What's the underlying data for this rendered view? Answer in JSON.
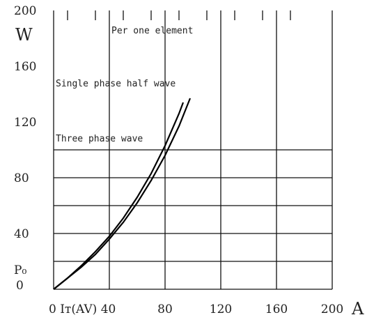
{
  "chart_data": {
    "type": "line",
    "title": "",
    "xlabel": "",
    "ylabel": "",
    "x_unit": "A",
    "y_unit": "W",
    "y_zero_label": "P₀",
    "x_first_label": "0 Iт(AV) 40",
    "xlim": [
      0,
      200
    ],
    "ylim": [
      0,
      200
    ],
    "x_ticks": [
      {
        "value": 0,
        "label": "0 Iт(AV)"
      },
      {
        "value": 40,
        "label": "40"
      },
      {
        "value": 80,
        "label": "80"
      },
      {
        "value": 120,
        "label": "120"
      },
      {
        "value": 160,
        "label": "160"
      },
      {
        "value": 200,
        "label": "200"
      }
    ],
    "y_ticks": [
      {
        "value": 0,
        "label": "0"
      },
      {
        "value": 40,
        "label": "40"
      },
      {
        "value": 80,
        "label": "80"
      },
      {
        "value": 120,
        "label": "120"
      },
      {
        "value": 160,
        "label": "160"
      },
      {
        "value": 200,
        "label": "200"
      }
    ],
    "grid": true,
    "annotations": [
      {
        "text": "Per one element"
      },
      {
        "text": "Single phase half wave"
      },
      {
        "text": "Three phase wave"
      }
    ],
    "series": [
      {
        "x": [
          0,
          10,
          20,
          30,
          40,
          50,
          60,
          70,
          80,
          90,
          93
        ],
        "y": [
          0,
          8,
          17,
          27,
          38,
          51,
          66,
          83,
          103,
          126,
          134
        ]
      },
      {
        "x": [
          0,
          10,
          20,
          30,
          40,
          50,
          60,
          70,
          80,
          90,
          98
        ],
        "y": [
          0,
          8,
          16,
          25,
          36,
          48,
          62,
          78,
          96,
          117,
          137
        ]
      }
    ]
  }
}
